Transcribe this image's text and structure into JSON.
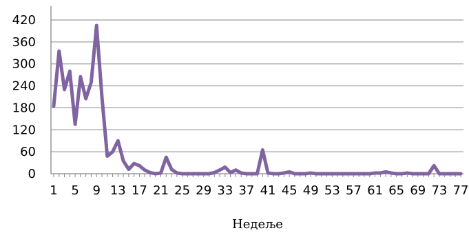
{
  "chart_data": {
    "type": "line",
    "xlabel": "Недеље",
    "ylabel": "",
    "ylim": [
      0,
      420
    ],
    "y_ticks": [
      0,
      60,
      120,
      180,
      240,
      300,
      360,
      420
    ],
    "y_tick_labels": [
      "0",
      "60",
      "120",
      "180",
      "240",
      "300",
      "360",
      "420"
    ],
    "x_tick_labels": [
      "1",
      "5",
      "9",
      "13",
      "17",
      "21",
      "25",
      "29",
      "33",
      "37",
      "41",
      "45",
      "49",
      "53",
      "57",
      "61",
      "65",
      "69",
      "73",
      "77"
    ],
    "x": [
      1,
      2,
      3,
      4,
      5,
      6,
      7,
      8,
      9,
      10,
      11,
      12,
      13,
      14,
      15,
      16,
      17,
      18,
      19,
      20,
      21,
      22,
      23,
      24,
      25,
      26,
      27,
      28,
      29,
      30,
      31,
      32,
      33,
      34,
      35,
      36,
      37,
      38,
      39,
      40,
      41,
      42,
      43,
      44,
      45,
      46,
      47,
      48,
      49,
      50,
      51,
      52,
      53,
      54,
      55,
      56,
      57,
      58,
      59,
      60,
      61,
      62,
      63,
      64,
      65,
      66,
      67,
      68,
      69,
      70,
      71,
      72,
      73,
      74,
      75,
      76,
      77
    ],
    "series": [
      {
        "color": "#8064A2",
        "values": [
          185,
          335,
          230,
          280,
          135,
          265,
          205,
          250,
          405,
          210,
          48,
          60,
          90,
          35,
          12,
          28,
          22,
          10,
          3,
          0,
          2,
          45,
          12,
          2,
          0,
          0,
          0,
          0,
          0,
          0,
          3,
          10,
          18,
          3,
          10,
          2,
          0,
          0,
          0,
          65,
          2,
          0,
          0,
          2,
          5,
          0,
          0,
          0,
          2,
          0,
          0,
          0,
          0,
          0,
          0,
          0,
          0,
          0,
          0,
          0,
          2,
          2,
          5,
          2,
          0,
          0,
          2,
          0,
          0,
          0,
          0,
          22,
          0,
          0,
          0,
          0,
          0
        ]
      }
    ],
    "grid": true,
    "legend": "none"
  }
}
